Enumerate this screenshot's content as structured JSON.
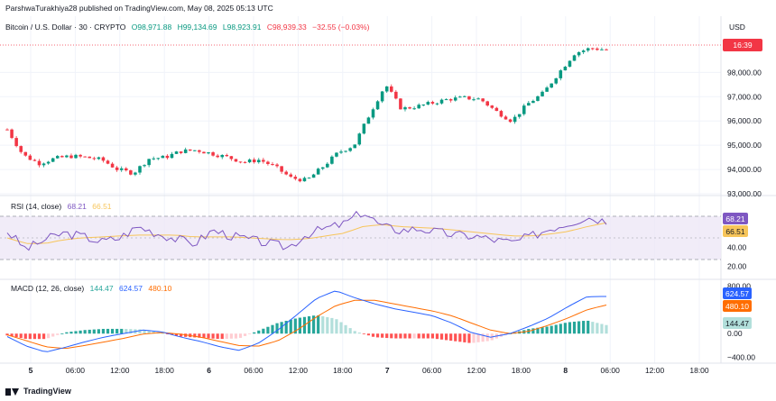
{
  "header": {
    "publisher": "ParshwaTurakhiya28 published on TradingView.com, May 08, 2025 05:13 UTC"
  },
  "footer": {
    "brand": "TradingView"
  },
  "price_pane": {
    "symbol": "Bitcoin / U.S. Dollar · 30 · CRYPTO",
    "open": "O98,971.88",
    "high": "H99,134.69",
    "low": "L98,923.91",
    "close": "C98,939.33",
    "change": "−32.55 (−0.03%)",
    "currency": "USD",
    "countdown": "16:39",
    "y_ticks": [
      "98,000.00",
      "97,000.00",
      "96,000.00",
      "95,000.00",
      "94,000.00",
      "93,000.00"
    ]
  },
  "rsi_pane": {
    "label": "RSI (14, close)",
    "rsi_value": "68.21",
    "ma_value": "66.51",
    "y_ticks": [
      "60.00",
      "40.00",
      "20.00"
    ]
  },
  "macd_pane": {
    "label": "MACD (12, 26, close)",
    "hist_value": "144.47",
    "macd_value": "624.57",
    "signal_value": "480.10",
    "y_ticks": [
      "800.00",
      "0.00",
      "−400.00"
    ]
  },
  "x_ticks": [
    "5",
    "06:00",
    "12:00",
    "18:00",
    "6",
    "06:00",
    "12:00",
    "18:00",
    "7",
    "06:00",
    "12:00",
    "18:00",
    "8",
    "06:00",
    "12:00",
    "18:00"
  ],
  "colors": {
    "up": "#089981",
    "down": "#f23645",
    "rsi": "#7e57c2",
    "rsi_ma": "#f7c55a",
    "macd": "#2962ff",
    "signal": "#ff6d00",
    "band": "#ede7f6"
  },
  "chart_data": [
    {
      "type": "candlestick",
      "title": "Bitcoin / U.S. Dollar · 30 · CRYPTO",
      "ylim": [
        93000,
        99500
      ],
      "x": [
        "5",
        "06:00",
        "12:00",
        "18:00",
        "6",
        "06:00",
        "12:00",
        "18:00",
        "7",
        "06:00",
        "12:00",
        "18:00",
        "8",
        "06:00"
      ],
      "close_path": [
        95650,
        94600,
        94250,
        94450,
        94550,
        94500,
        94400,
        94000,
        93850,
        94450,
        94500,
        94750,
        94800,
        94650,
        94500,
        94300,
        94400,
        94100,
        93650,
        93550,
        94100,
        94700,
        95000,
        96300,
        97500,
        96500,
        96600,
        96750,
        96900,
        96950,
        96900,
        96400,
        96000,
        96700,
        97150,
        98000,
        98800,
        99000,
        98939
      ]
    },
    {
      "type": "line",
      "title": "RSI (14, close)",
      "ylim": [
        10,
        90
      ],
      "series": [
        {
          "name": "RSI",
          "values": [
            57,
            38,
            48,
            55,
            52,
            46,
            50,
            62,
            55,
            49,
            44,
            58,
            52,
            48,
            44,
            40,
            54,
            60,
            65,
            78,
            62,
            58,
            60,
            56,
            53,
            52,
            48,
            45,
            52,
            60,
            66,
            72,
            68
          ]
        },
        {
          "name": "MA",
          "values": [
            50,
            44,
            44,
            48,
            50,
            51,
            52,
            53,
            53,
            53,
            51,
            51,
            51,
            50,
            49,
            48,
            49,
            52,
            55,
            62,
            64,
            62,
            61,
            60,
            58,
            56,
            54,
            52,
            52,
            54,
            57,
            62,
            66
          ]
        }
      ]
    },
    {
      "type": "bar",
      "title": "MACD (12, 26, close)",
      "ylim": [
        -450,
        850
      ],
      "series": [
        {
          "name": "MACD",
          "values": [
            -50,
            -210,
            -310,
            -230,
            -140,
            -60,
            0,
            60,
            30,
            -60,
            -130,
            -220,
            -280,
            -160,
            60,
            320,
            590,
            720,
            600,
            500,
            420,
            360,
            300,
            180,
            20,
            -60,
            0,
            120,
            260,
            450,
            620,
            624
          ]
        },
        {
          "name": "Signal",
          "values": [
            -20,
            -120,
            -220,
            -250,
            -200,
            -140,
            -80,
            -10,
            20,
            -10,
            -60,
            -130,
            -200,
            -210,
            -120,
            60,
            280,
            470,
            560,
            560,
            500,
            440,
            380,
            300,
            180,
            60,
            0,
            40,
            140,
            260,
            400,
            480
          ]
        }
      ]
    }
  ]
}
